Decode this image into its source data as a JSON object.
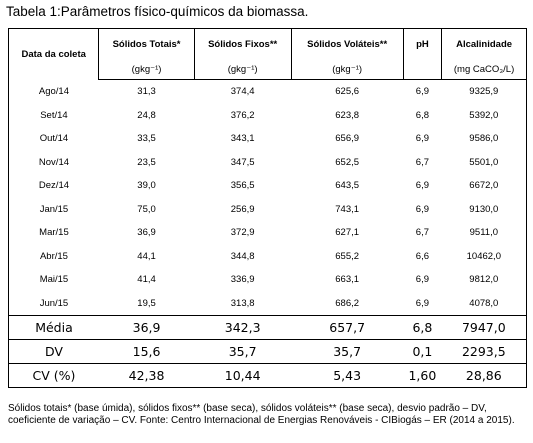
{
  "title": "Tabela 1:Parâmetros físico-químicos da biomassa.",
  "table": {
    "row_header": "Data da coleta",
    "columns": [
      {
        "label": "Sólidos Totais*",
        "unit": "(gkg⁻¹)"
      },
      {
        "label": "Sólidos Fixos**",
        "unit": "(gkg⁻¹)"
      },
      {
        "label": "Sólidos Voláteis**",
        "unit": "(gkg⁻¹)"
      },
      {
        "label": "pH"
      },
      {
        "label": "Alcalinidade",
        "unit": "(mg CaCO₃/L)"
      }
    ],
    "rows": [
      [
        "Ago/14",
        "31,3",
        "374,4",
        "625,6",
        "6,9",
        "9325,9"
      ],
      [
        "Set/14",
        "24,8",
        "376,2",
        "623,8",
        "6,8",
        "5392,0"
      ],
      [
        "Out/14",
        "33,5",
        "343,1",
        "656,9",
        "6,9",
        "9586,0"
      ],
      [
        "Nov/14",
        "23,5",
        "347,5",
        "652,5",
        "6,7",
        "5501,0"
      ],
      [
        "Dez/14",
        "39,0",
        "356,5",
        "643,5",
        "6,9",
        "6672,0"
      ],
      [
        "Jan/15",
        "75,0",
        "256,9",
        "743,1",
        "6,9",
        "9130,0"
      ],
      [
        "Mar/15",
        "36,9",
        "372,9",
        "627,1",
        "6,7",
        "9511,0"
      ],
      [
        "Abr/15",
        "44,1",
        "344,8",
        "655,2",
        "6,6",
        "10462,0"
      ],
      [
        "Mai/15",
        "41,4",
        "336,9",
        "663,1",
        "6,9",
        "9812,0"
      ],
      [
        "Jun/15",
        "19,5",
        "313,8",
        "686,2",
        "6,9",
        "4078,0"
      ]
    ],
    "summary": [
      [
        "Média",
        "36,9",
        "342,3",
        "657,7",
        "6,8",
        "7947,0"
      ],
      [
        "DV",
        "15,6",
        "35,7",
        "35,7",
        "0,1",
        "2293,5"
      ],
      [
        "CV (%)",
        "42,38",
        "10,44",
        "5,43",
        "1,60",
        "28,86"
      ]
    ]
  },
  "footnote": "Sólidos totais* (base úmida), sólidos fixos** (base seca), sólidos voláteis** (base seca), desvio padrão – DV, coeficiente de variação – CV. Fonte: Centro Internacional de Energias Renováveis - CIBiogás – ER (2014 a 2015)."
}
